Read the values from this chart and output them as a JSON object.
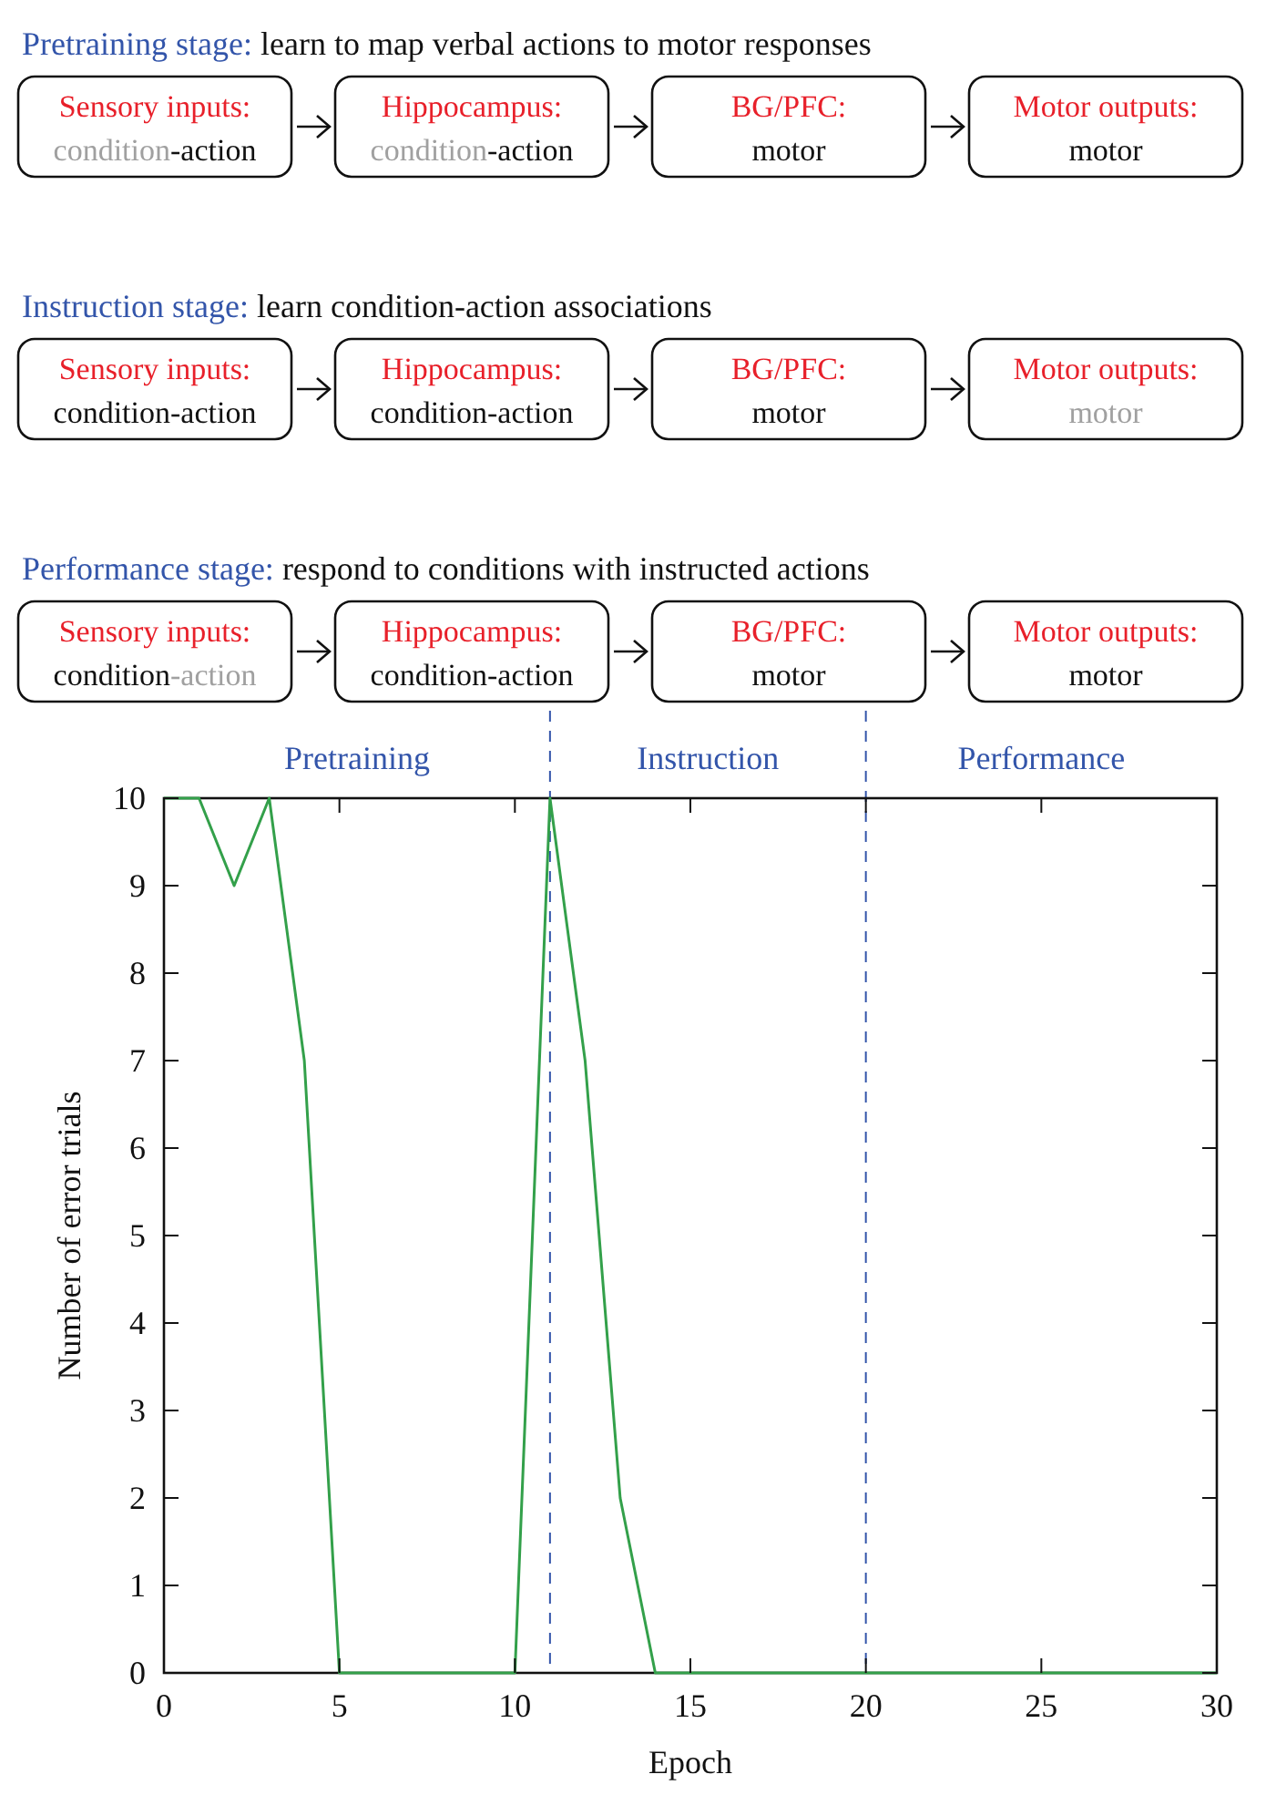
{
  "chart_data": {
    "type": "line",
    "xlabel": "Epoch",
    "ylabel": "Number of error trials",
    "x": [
      0,
      1,
      2,
      3,
      4,
      5,
      6,
      7,
      8,
      9,
      10,
      11,
      12,
      13,
      14,
      15,
      16,
      17,
      18,
      19,
      20,
      21,
      22,
      23,
      24,
      25,
      26,
      27,
      28,
      29,
      30
    ],
    "series": [
      {
        "color": "#33a04a",
        "values": [
          10,
          10,
          9,
          10,
          7,
          0,
          0,
          0,
          0,
          0,
          0,
          10,
          7,
          2,
          0,
          0,
          0,
          0,
          0,
          0,
          0,
          0,
          0,
          0,
          0,
          0,
          0,
          0,
          0,
          0,
          0
        ]
      }
    ],
    "xlim": [
      0,
      30
    ],
    "ylim": [
      0,
      10
    ],
    "xticks": [
      0,
      5,
      10,
      15,
      20,
      25,
      30
    ],
    "yticks": [
      0,
      1,
      2,
      3,
      4,
      5,
      6,
      7,
      8,
      9,
      10
    ],
    "grid": false,
    "marker": "none",
    "line_style": "solid",
    "ref_lines": [
      {
        "axis": "x",
        "value": 11,
        "color": "#3355aa",
        "line_style": "dashed"
      },
      {
        "axis": "x",
        "value": 20,
        "color": "#3355aa",
        "line_style": "dashed"
      }
    ],
    "annotations": [
      "Pretraining",
      "Instruction",
      "Performance",
      "Pretraining stage:",
      " learn to map verbal actions to motor responses",
      "Sensory inputs:",
      "condition",
      "-action",
      "Hippocampus:",
      "condition",
      "-action",
      "BG/PFC:",
      "motor",
      "Motor outputs:",
      "motor",
      "Instruction stage:",
      " learn condition-action associations",
      "Sensory inputs:",
      "condition-action",
      "Hippocampus:",
      "condition-action",
      "BG/PFC:",
      "motor",
      "Motor outputs:",
      "motor",
      "Performance stage:",
      " respond to conditions with instructed actions",
      "Sensory inputs:",
      "condition",
      "-action",
      "Hippocampus:",
      "condition-action",
      "BG/PFC:",
      "motor",
      "Motor outputs:",
      "motor"
    ]
  }
}
